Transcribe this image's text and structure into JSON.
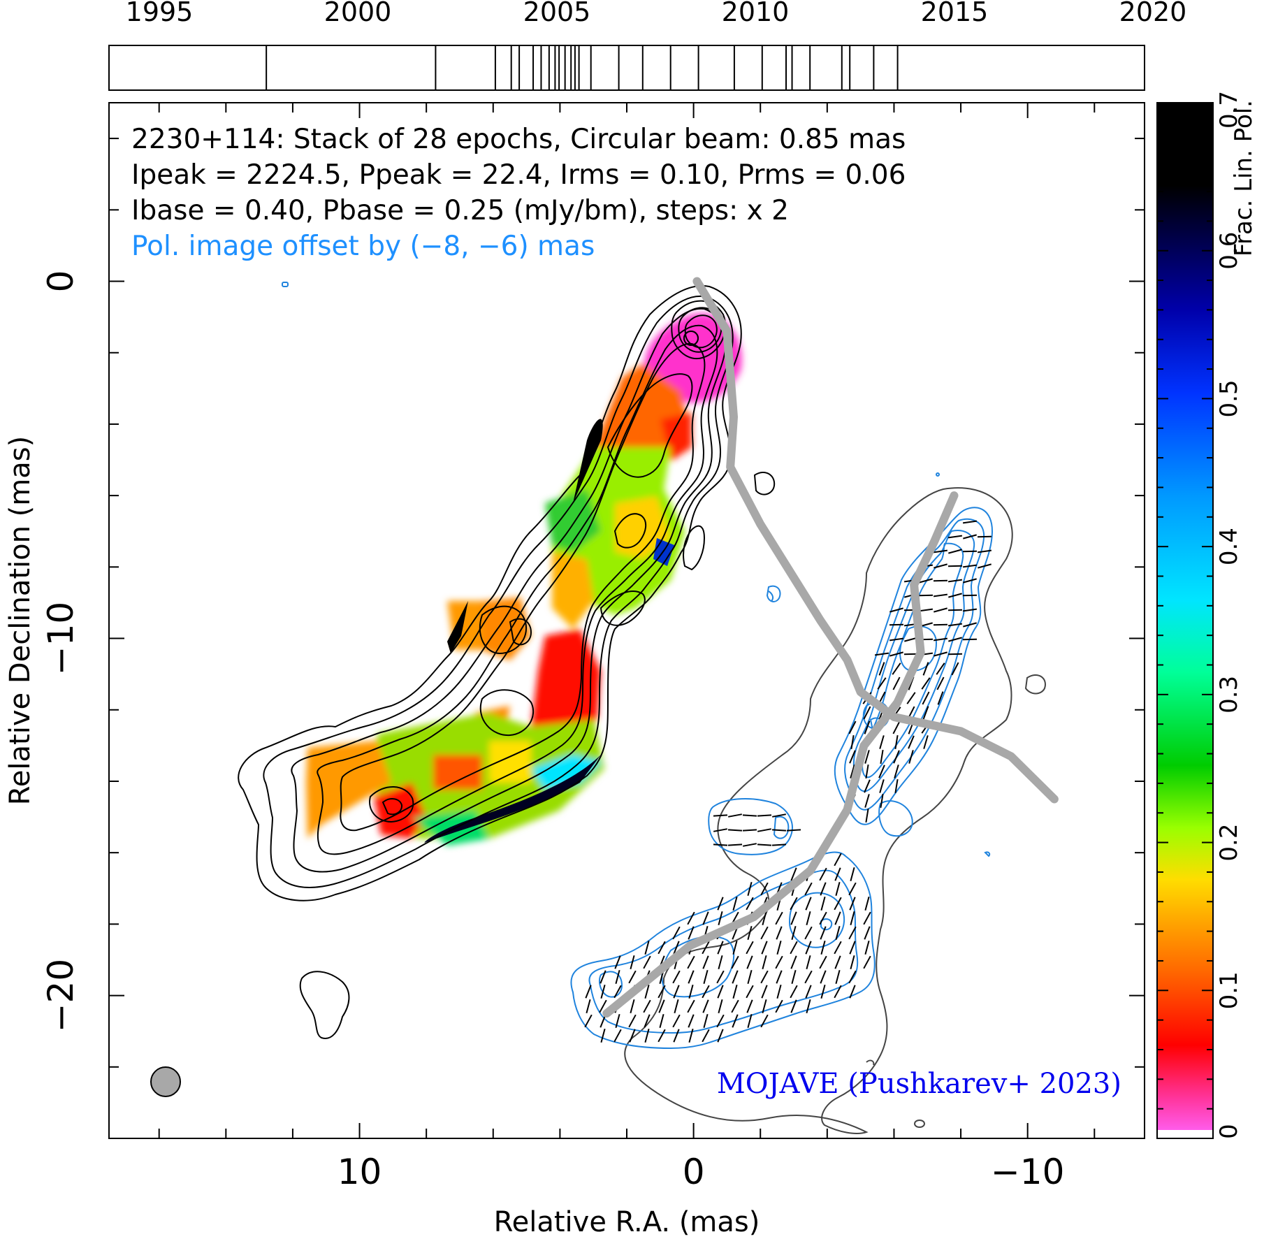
{
  "chart_data": {
    "type": "map",
    "timeline": {
      "tick_labels": [
        "1995",
        "2000",
        "2005",
        "2010",
        "2015",
        "2020"
      ],
      "range": [
        1994.5,
        2020.5
      ],
      "epochs": [
        1998.45,
        2002.7,
        2004.2,
        2004.6,
        2004.8,
        2005.15,
        2005.35,
        2005.55,
        2005.7,
        2005.8,
        2005.95,
        2006.1,
        2006.2,
        2006.3,
        2006.6,
        2007.3,
        2007.9,
        2008.6,
        2009.3,
        2010.2,
        2010.9,
        2011.5,
        2011.65,
        2012.1,
        2012.9,
        2013.1,
        2013.7,
        2014.3
      ]
    },
    "annotations": [
      "2230+114: Stack of 28 epochs, Circular beam: 0.85 mas",
      "Ipeak = 2224.5, Ppeak = 22.4, Irms = 0.10, Prms = 0.06",
      "Ibase = 0.40, Pbase = 0.25 (mJy/bm), steps: x 2",
      "Pol. image offset by (−8, −6) mas"
    ],
    "credit": "MOJAVE (Pushkarev+ 2023)",
    "xlabel": "Relative R.A. (mas)",
    "ylabel": "Relative Declination (mas)",
    "xlim": [
      17.5,
      -13.5
    ],
    "ylim": [
      -24,
      5
    ],
    "x_ticks": [
      "10",
      "0",
      "−10"
    ],
    "y_ticks": [
      "0",
      "−10",
      "−20"
    ],
    "x_tick_values": [
      10,
      0,
      -10
    ],
    "y_tick_values": [
      0,
      -10,
      -20
    ],
    "beam_diameter_mas": 0.85,
    "colorbar": {
      "label": "Frac. Lin. Pol.",
      "range": [
        0,
        0.7
      ],
      "tick_labels": [
        "0",
        "0.1",
        "0.2",
        "0.3",
        "0.4",
        "0.5",
        "0.6",
        "0.7"
      ],
      "tick_values": [
        0,
        0.1,
        0.2,
        0.3,
        0.4,
        0.5,
        0.6,
        0.7
      ]
    },
    "ridge_line": [
      [
        -0.1,
        0
      ],
      [
        -1.0,
        -1.4
      ],
      [
        -1.2,
        -3.8
      ],
      [
        -1.1,
        -5.2
      ],
      [
        -2.0,
        -6.8
      ],
      [
        -3.8,
        -9.5
      ],
      [
        -4.6,
        -10.6
      ],
      [
        -5.0,
        -11.5
      ],
      [
        -6.0,
        -12.2
      ],
      [
        -8.0,
        -12.6
      ],
      [
        -9.5,
        -13.3
      ],
      [
        -10.8,
        -14.5
      ]
    ],
    "pol_ridge_line": [
      [
        -7.8,
        -6.0
      ],
      [
        -7.2,
        -7.3
      ],
      [
        -6.6,
        -8.5
      ],
      [
        -6.8,
        -10.4
      ],
      [
        -6.1,
        -11.8
      ],
      [
        -5.1,
        -13.0
      ],
      [
        -4.6,
        -14.8
      ],
      [
        -3.5,
        -16.5
      ],
      [
        -1.8,
        -17.8
      ],
      [
        0.1,
        -18.6
      ],
      [
        2.6,
        -20.5
      ]
    ]
  },
  "colors": {
    "total_intensity_contours": "#000000",
    "pol_contours": "#1f83dd",
    "ridge": "#a8a8a8",
    "pol_offset_text": "#1e90ff",
    "credit_text": "#0000ee",
    "beam_fill": "#a8a8a8"
  }
}
